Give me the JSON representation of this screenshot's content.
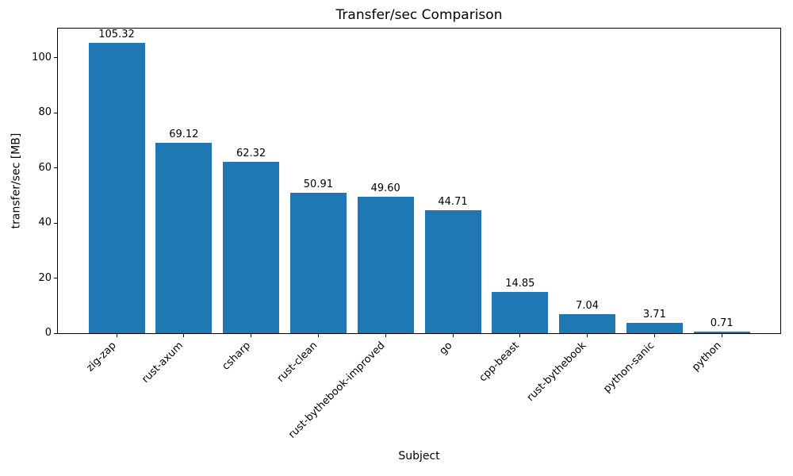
{
  "chart_data": {
    "type": "bar",
    "title": "Transfer/sec Comparison",
    "xlabel": "Subject",
    "ylabel": "transfer/sec [MB]",
    "categories": [
      "zig-zap",
      "rust-axum",
      "csharp",
      "rust-clean",
      "rust-bythebook-improved",
      "go",
      "cpp-beast",
      "rust-bythebook",
      "python-sanic",
      "python"
    ],
    "values": [
      105.32,
      69.12,
      62.32,
      50.91,
      49.6,
      44.71,
      14.85,
      7.04,
      3.71,
      0.71
    ],
    "value_labels": [
      "105.32",
      "69.12",
      "62.32",
      "50.91",
      "49.60",
      "44.71",
      "14.85",
      "7.04",
      "3.71",
      "0.71"
    ],
    "y_ticks": [
      0,
      20,
      40,
      60,
      80,
      100
    ],
    "ylim": [
      0,
      110.59
    ],
    "xtick_rotation_deg": 45,
    "bar_color": "#1f77b4",
    "grid": false,
    "legend": null
  }
}
